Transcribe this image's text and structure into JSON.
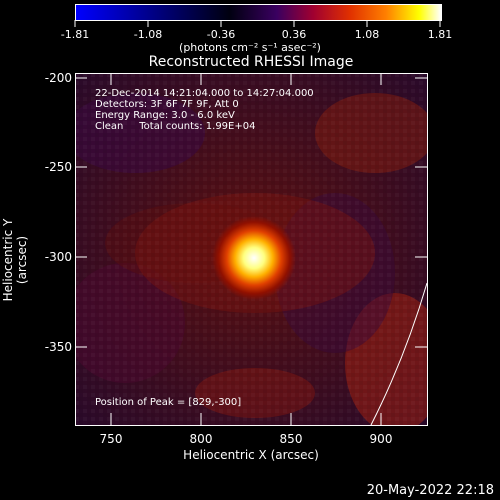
{
  "colorbar": {
    "tick_labels": [
      "-1.81",
      "-1.08",
      "-0.36",
      "0.36",
      "1.08",
      "1.81"
    ],
    "unit_label": "(photons cm⁻² s⁻¹ asec⁻²)",
    "colors": [
      "#0000ff",
      "#000000",
      "#c00000",
      "#ff7000",
      "#ffff00",
      "#ffffff"
    ]
  },
  "plot": {
    "title": "Reconstructed RHESSI Image",
    "xlabel": "Heliocentric X (arcsec)",
    "ylabel": "Heliocentric Y (arcsec)",
    "x_tick_labels": [
      "750",
      "800",
      "850",
      "900"
    ],
    "y_tick_labels": [
      "-200",
      "-250",
      "-300",
      "-350"
    ],
    "xlim": [
      730,
      925
    ],
    "ylim": [
      -395,
      -197
    ]
  },
  "info": {
    "time_range": "22-Dec-2014 14:21:04.000 to 14:27:04.000",
    "detectors": "Detectors: 3F 6F 7F 9F, Att 0",
    "energy": "Energy Range: 3.0 - 6.0 keV",
    "method": "Clean     Total counts: 1.99E+04",
    "peak": "Position of Peak = [829,-300]"
  },
  "date_stamp": "20-May-2022 22:18"
}
